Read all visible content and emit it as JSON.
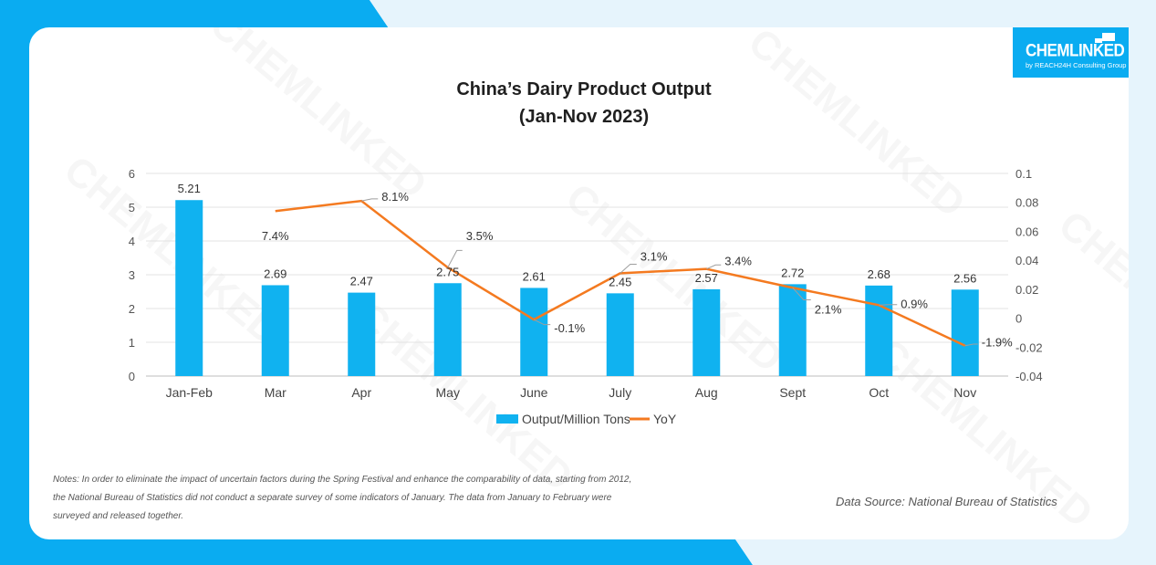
{
  "brand": {
    "name": "CHEMLINKED",
    "sub": "by REACH24H Consulting Group"
  },
  "chart_data": {
    "type": "bar",
    "title": "China’s Dairy Product Output",
    "subtitle": "(Jan-Nov 2023)",
    "categories": [
      "Jan-Feb",
      "Mar",
      "Apr",
      "May",
      "June",
      "July",
      "Aug",
      "Sept",
      "Oct",
      "Nov"
    ],
    "series": [
      {
        "name": "Output/Million Tons",
        "chart": "bar",
        "axis": "left",
        "color": "#10b2f0",
        "values": [
          5.21,
          2.69,
          2.47,
          2.75,
          2.61,
          2.45,
          2.57,
          2.72,
          2.68,
          2.56
        ],
        "labels": [
          "5.21",
          "2.69",
          "2.47",
          "2.75",
          "2.61",
          "2.45",
          "2.57",
          "2.72",
          "2.68",
          "2.56"
        ]
      },
      {
        "name": "YoY",
        "chart": "line",
        "axis": "right",
        "color": "#f47a20",
        "values": [
          null,
          0.074,
          0.081,
          0.035,
          -0.001,
          0.031,
          0.034,
          0.021,
          0.009,
          -0.019
        ],
        "labels": [
          "",
          "7.4%",
          "8.1%",
          "3.5%",
          "-0.1%",
          "3.1%",
          "3.4%",
          "2.1%",
          "0.9%",
          "-1.9%"
        ]
      }
    ],
    "y_left": {
      "ylim": [
        0,
        6
      ],
      "ticks": [
        "0",
        "1",
        "2",
        "3",
        "4",
        "5",
        "6"
      ]
    },
    "y_right": {
      "ylim": [
        -0.04,
        0.1
      ],
      "ticks": [
        "-0.04",
        "-0.02",
        "0",
        "0.02",
        "0.04",
        "0.06",
        "0.08",
        "0.1"
      ]
    },
    "grid": true,
    "legend": "bottom"
  },
  "notes": {
    "text": "Notes: In order to eliminate the impact of uncertain factors during the Spring Festival and enhance the comparability of data, starting from 2012, the National Bureau of Statistics did not conduct a separate survey of some indicators of January. The data from January to February were surveyed and released together."
  },
  "source": {
    "text": "Data Source: National Bureau of Statistics"
  }
}
